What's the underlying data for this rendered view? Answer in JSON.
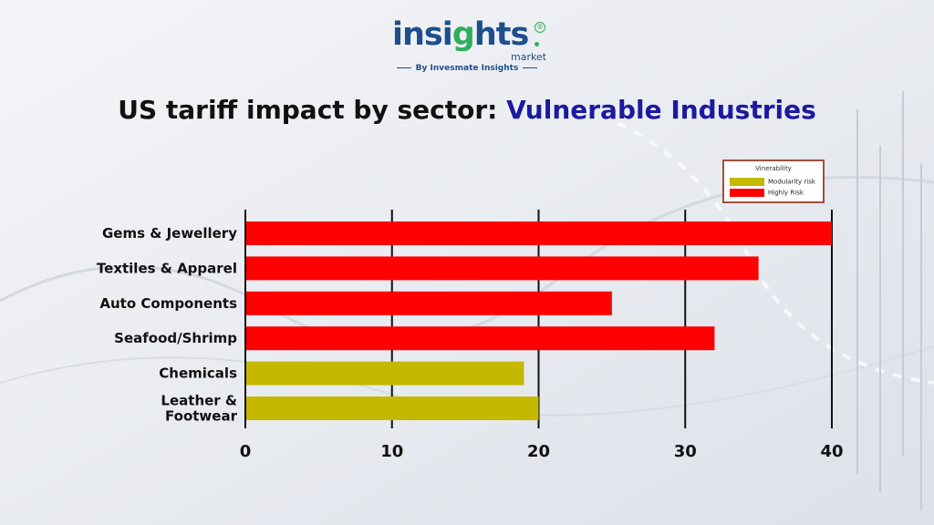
{
  "brand": {
    "name_part1": "insi",
    "name_part2": "g",
    "name_part3": "hts",
    "registered": "®",
    "sub": "market",
    "by_line": "By Invesmate Insights"
  },
  "title": {
    "main": "US tariff impact by sector: ",
    "accent": "Vulnerable Industries"
  },
  "chart_data": {
    "type": "bar",
    "orientation": "horizontal",
    "categories": [
      "Gems & Jewellery",
      "Textiles & Apparel",
      "Auto Components",
      "Seafood/Shrimp",
      "Chemicals",
      "Leather & Footwear"
    ],
    "category_lines": [
      [
        "Gems & Jewellery"
      ],
      [
        "Textiles & Apparel"
      ],
      [
        "Auto Components"
      ],
      [
        "Seafood/Shrimp"
      ],
      [
        "Chemicals"
      ],
      [
        "Leather &",
        "Footwear"
      ]
    ],
    "values": [
      40,
      35,
      25,
      32,
      19,
      20
    ],
    "groups": [
      "Highly Risk",
      "Highly Risk",
      "Highly Risk",
      "Highly Risk",
      "Modularity risk",
      "Modularity risk"
    ],
    "xlim": [
      0,
      40
    ],
    "xticks": [
      0,
      10,
      20,
      30,
      40
    ],
    "grid": "vertical",
    "legend": {
      "title": "Vinerability",
      "placement": "top-right",
      "entries": [
        {
          "label": "Modularity risk",
          "color": "#c4b800"
        },
        {
          "label": "Highly Risk",
          "color": "#ff0000"
        }
      ]
    },
    "colors": {
      "Highly Risk": "#ff0000",
      "Modularity risk": "#c4b800"
    }
  }
}
